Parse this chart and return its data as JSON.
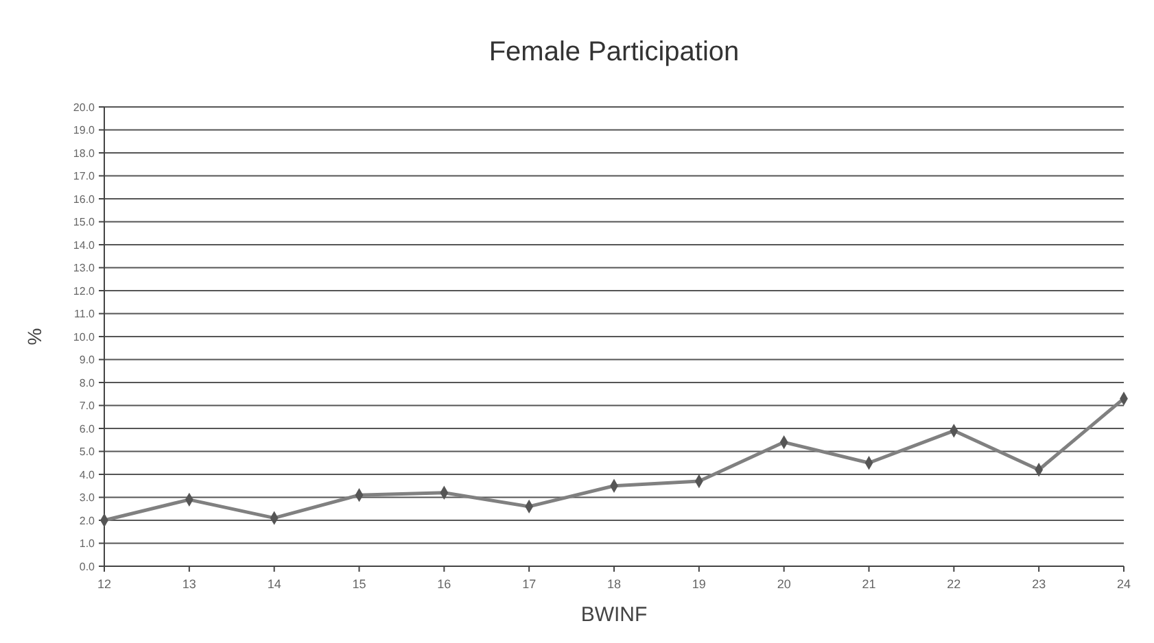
{
  "chart_data": {
    "type": "line",
    "title": "Female Participation",
    "xlabel": "BWINF",
    "ylabel": "%",
    "categories": [
      "12",
      "13",
      "14",
      "15",
      "16",
      "17",
      "18",
      "19",
      "20",
      "21",
      "22",
      "23",
      "24"
    ],
    "series": [
      {
        "color": "#808080",
        "values": [
          2.0,
          2.9,
          2.1,
          3.1,
          3.2,
          2.6,
          3.5,
          3.7,
          5.4,
          4.5,
          5.9,
          4.2,
          7.3
        ]
      }
    ],
    "ylim": [
      0,
      20
    ],
    "yticks": [
      {
        "value": 0,
        "label": "0.0"
      },
      {
        "value": 1,
        "label": "1.0"
      },
      {
        "value": 2,
        "label": "2.0"
      },
      {
        "value": 3,
        "label": "3.0"
      },
      {
        "value": 4,
        "label": "4.0"
      },
      {
        "value": 5,
        "label": "5.0"
      },
      {
        "value": 6,
        "label": "6.0"
      },
      {
        "value": 7,
        "label": "7.0"
      },
      {
        "value": 8,
        "label": "8.0"
      },
      {
        "value": 9,
        "label": "9.0"
      },
      {
        "value": 10,
        "label": "10.0"
      },
      {
        "value": 11,
        "label": "11.0"
      },
      {
        "value": 12,
        "label": "12.0"
      },
      {
        "value": 13,
        "label": "13.0"
      },
      {
        "value": 14,
        "label": "14.0"
      },
      {
        "value": 15,
        "label": "15.0"
      },
      {
        "value": 16,
        "label": "16.0"
      },
      {
        "value": 17,
        "label": "17.0"
      },
      {
        "value": 18,
        "label": "18.0"
      },
      {
        "value": 19,
        "label": "19.0"
      },
      {
        "value": 20,
        "label": "20.0"
      }
    ],
    "grid": "y",
    "marker": "diamond",
    "line_style": "solid"
  }
}
